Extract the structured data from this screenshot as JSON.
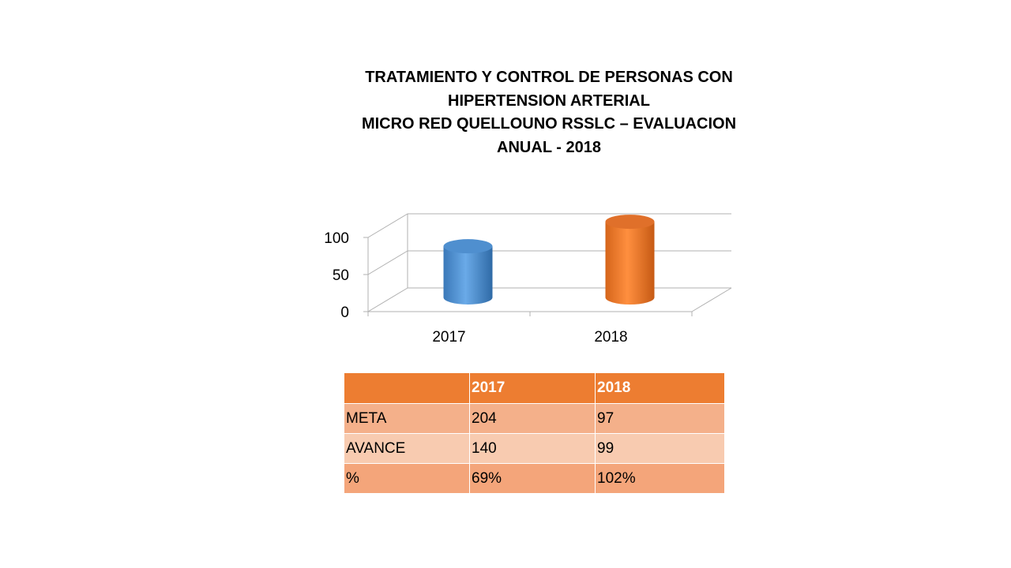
{
  "chart_data": {
    "type": "bar",
    "title_lines": [
      "TRATAMIENTO Y CONTROL DE PERSONAS CON",
      "HIPERTENSION ARTERIAL",
      "MICRO RED QUELLOUNO RSSLC – EVALUACION",
      "ANUAL - 2018"
    ],
    "categories": [
      "2017",
      "2018"
    ],
    "values": [
      69,
      102
    ],
    "ylim": [
      0,
      100
    ],
    "y_ticks": [
      "0",
      "50",
      "100"
    ],
    "y_tick_values": [
      0,
      50,
      100
    ],
    "colors": [
      "#5b9bd5",
      "#ed7d31"
    ],
    "grid": true,
    "style": "3d-cylinder"
  },
  "table": {
    "headers": [
      "",
      "2017",
      "2018"
    ],
    "rows": [
      [
        "META",
        "204",
        "97"
      ],
      [
        "AVANCE",
        "140",
        "99"
      ],
      [
        "%",
        "69%",
        "102%"
      ]
    ]
  }
}
